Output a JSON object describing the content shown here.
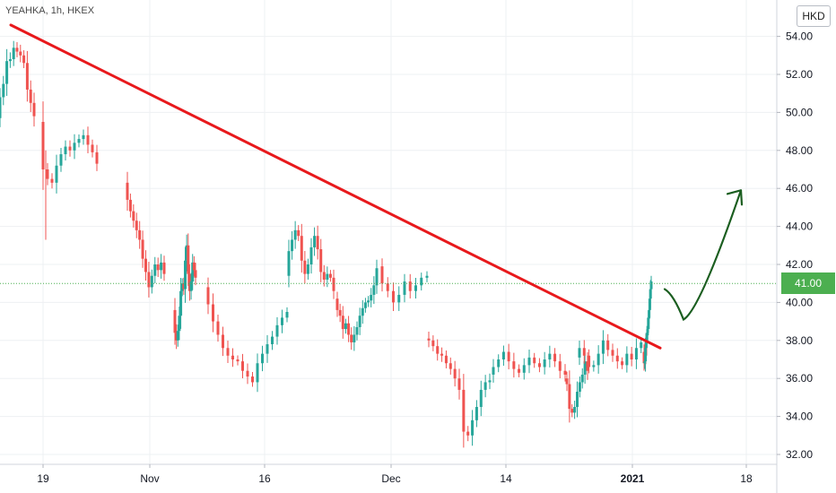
{
  "symbol": {
    "label": "YEAHKA, 1h, HKEX"
  },
  "currency": "HKD",
  "colors": {
    "up": "#26a69a",
    "down": "#ef5350",
    "trendline": "#e8191c",
    "arrow": "#1b5e20",
    "price_tag": "#4caf50",
    "grid": "#eef0f3",
    "axis_text": "#131722"
  },
  "chart_data": {
    "type": "candlestick",
    "x_ticks": [
      "19",
      "Nov",
      "16",
      "Dec",
      "14",
      "2021",
      "18"
    ],
    "y_ticks": [
      "32.00",
      "34.00",
      "36.00",
      "38.00",
      "40.00",
      "42.00",
      "44.00",
      "46.00",
      "48.00",
      "50.00",
      "52.00",
      "54.00"
    ],
    "ylim": [
      31.8,
      55.4
    ],
    "current_price": "41.00",
    "grid": true,
    "segments": [
      {
        "from": "Oct 16",
        "to": "Oct 19",
        "path": [
          [
            49.7,
            50.8
          ],
          [
            51.5,
            52.7
          ],
          [
            52.8,
            53.4
          ],
          [
            53.2,
            53.0
          ],
          [
            52.6,
            51.2
          ],
          [
            50.5,
            49.8
          ]
        ]
      },
      {
        "from": "Oct 19",
        "to": "Oct 23",
        "path": [
          [
            49.5,
            47.0
          ],
          [
            46.5,
            46.3
          ],
          [
            47.2,
            47.8
          ],
          [
            48.2,
            48.0
          ],
          [
            48.4,
            48.6
          ],
          [
            48.8,
            48.3
          ],
          [
            47.9,
            47.3
          ]
        ]
      },
      {
        "from": "Oct 26",
        "to": "Oct 30",
        "path": [
          [
            46.3,
            45.4
          ],
          [
            44.8,
            44.3
          ],
          [
            43.8,
            43.3
          ],
          [
            42.3,
            41.6
          ],
          [
            40.8,
            41.4
          ],
          [
            42.0,
            41.7
          ],
          [
            42.1,
            41.5
          ]
        ]
      },
      {
        "from": "Nov 2",
        "to": "Nov 6",
        "path": [
          [
            39.6,
            38.4
          ],
          [
            38.0,
            38.5
          ],
          [
            39.3,
            40.6
          ],
          [
            41.0,
            40.7
          ],
          [
            42.2,
            43.0
          ],
          [
            41.5,
            40.6
          ],
          [
            41.1,
            42.1
          ],
          [
            41.7,
            41.3
          ]
        ]
      },
      {
        "from": "Nov 9",
        "to": "Nov 13",
        "path": [
          [
            40.8,
            39.9
          ],
          [
            39.0,
            38.3
          ],
          [
            37.6,
            37.2
          ],
          [
            37.0,
            36.9
          ],
          [
            36.4,
            36.1
          ],
          [
            35.8,
            36.8
          ],
          [
            37.3,
            37.8
          ],
          [
            38.2,
            38.8
          ],
          [
            39.2,
            39.5
          ]
        ]
      },
      {
        "from": "Nov 16",
        "to": "Nov 20",
        "path": [
          [
            41.4,
            42.7
          ],
          [
            43.3,
            43.8
          ],
          [
            43.5,
            42.2
          ],
          [
            41.5,
            42.0
          ],
          [
            42.9,
            43.5
          ],
          [
            42.8,
            41.6
          ],
          [
            41.2,
            41.5
          ],
          [
            41.3,
            40.6
          ]
        ]
      },
      {
        "from": "Nov 23",
        "to": "Nov 27",
        "path": [
          [
            40.2,
            39.6
          ],
          [
            39.3,
            38.6
          ],
          [
            38.9,
            38.3
          ],
          [
            37.9,
            38.3
          ],
          [
            38.7,
            39.3
          ],
          [
            39.7,
            40.0
          ],
          [
            40.1,
            40.4
          ],
          [
            40.9,
            41.8
          ]
        ]
      },
      {
        "from": "Nov 30",
        "to": "Dec 4",
        "path": [
          [
            41.9,
            41.0
          ],
          [
            40.6,
            40.0
          ],
          [
            40.4,
            41.1
          ],
          [
            40.6,
            40.9
          ],
          [
            41.3,
            41.4
          ]
        ]
      },
      {
        "from": "Dec 7",
        "to": "Dec 11",
        "path": [
          [
            38.1,
            38.0
          ],
          [
            37.7,
            37.3
          ],
          [
            37.2,
            36.8
          ],
          [
            36.5,
            36.0
          ],
          [
            35.4,
            33.2
          ],
          [
            33.0,
            33.8
          ],
          [
            34.5,
            35.4
          ],
          [
            35.8,
            35.9
          ]
        ]
      },
      {
        "from": "Dec 14",
        "to": "Dec 18",
        "path": [
          [
            36.2,
            36.6
          ],
          [
            37.0,
            37.4
          ],
          [
            36.9,
            36.5
          ],
          [
            36.3,
            36.7
          ],
          [
            37.1,
            36.8
          ],
          [
            36.6,
            37.0
          ],
          [
            37.3,
            36.9
          ],
          [
            36.4,
            36.2
          ]
        ]
      },
      {
        "from": "Dec 21",
        "to": "Dec 24",
        "path": [
          [
            36.0,
            35.7
          ],
          [
            34.4,
            34.2
          ],
          [
            34.5,
            35.3
          ],
          [
            35.8,
            36.2
          ],
          [
            36.9,
            36.4
          ]
        ]
      },
      {
        "from": "Dec 28",
        "to": "Dec 31",
        "path": [
          [
            37.1,
            37.6
          ],
          [
            37.2,
            36.6
          ],
          [
            36.7,
            37.3
          ],
          [
            38.0,
            37.5
          ],
          [
            37.2,
            36.9
          ],
          [
            36.7,
            37.3
          ],
          [
            37.0,
            37.6
          ],
          [
            37.9,
            37.2
          ]
        ]
      },
      {
        "from": "Jan 4",
        "to": "Jan 4",
        "path": [
          [
            37.4,
            36.8
          ],
          [
            36.9,
            37.6
          ],
          [
            38.0,
            38.4
          ],
          [
            38.6,
            39.2
          ],
          [
            39.6,
            40.2
          ],
          [
            40.7,
            41.1
          ]
        ]
      }
    ],
    "trendline": {
      "start": [
        "Oct 16",
        54.6
      ],
      "end": [
        "Jan 5",
        37.6
      ]
    },
    "projection_arrow": [
      [
        "Jan 5",
        40.7
      ],
      [
        "Jan 8",
        39.1
      ],
      [
        "Jan 19",
        45.9
      ]
    ]
  }
}
